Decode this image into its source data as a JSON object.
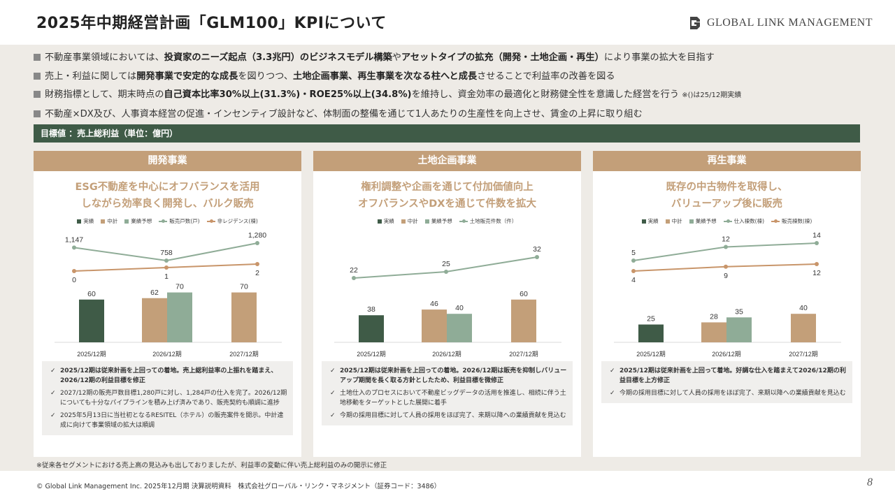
{
  "title": "2025年中期経営計画「GLM100」KPIについて",
  "logo_text": "GLOBAL LINK MANAGEMENT",
  "colors": {
    "actual": "#3f5b47",
    "plan": "#c39f79",
    "forecast": "#8fac97",
    "line_green": "#8fac97",
    "line_brown": "#c8956a",
    "target_bar": "#3f5b47",
    "panel_head": "#c39f79"
  },
  "bullets": [
    [
      {
        "t": "不動産事業領域においては、"
      },
      {
        "t": "投資家のニーズ起点（3.3兆円）のビジネスモデル構築",
        "b": true
      },
      {
        "t": "や"
      },
      {
        "t": "アセットタイプの拡充",
        "b": true
      },
      {
        "t": "（開発・土地企画・再生）",
        "b": true
      },
      {
        "t": "により事業の拡大を目指す"
      }
    ],
    [
      {
        "t": "売上・利益に関しては"
      },
      {
        "t": "開発事業で安定的な成長",
        "b": true
      },
      {
        "t": "を図りつつ、"
      },
      {
        "t": "土地企画事業、再生事業を次なる柱へと成長",
        "b": true
      },
      {
        "t": "させることで利益率の改善を図る"
      }
    ],
    [
      {
        "t": "財務指標として、期末時点の"
      },
      {
        "t": "自己資本比率30%以上(31.3%)・ROE25%以上(34.8%)",
        "b": true
      },
      {
        "t": "を維持し、資金効率の最適化と財務健全性を意識した経営を行う "
      },
      {
        "t": "※()は25/12期実績",
        "s": true
      }
    ],
    [
      {
        "t": "不動産×DX及び、人事資本経営の促進・インセンティブ設計など、体制面の整備を通じて1人あたりの生産性を向上させ、賃金の上昇に取り組む"
      }
    ]
  ],
  "target_label": "目標値 ：売上総利益（単位：億円）",
  "panels": [
    {
      "head": "開発事業",
      "sub": [
        "ESG不動産を中心にオフバランスを活用",
        "しながら効率良く開発し、バルク販売"
      ],
      "legend": [
        {
          "label": "実績",
          "kind": "bar",
          "color": "#3f5b47"
        },
        {
          "label": "中計",
          "kind": "bar",
          "color": "#c39f79"
        },
        {
          "label": "業績予想",
          "kind": "bar",
          "color": "#8fac97"
        },
        {
          "label": "販売戸数(戸)",
          "kind": "line",
          "color": "#8fac97"
        },
        {
          "label": "非レジデンス(棟)",
          "kind": "line",
          "color": "#c8956a"
        }
      ],
      "notes": [
        {
          "text": "2025/12期は従来計画を上回っての着地。売上総利益率の上振れを踏まえ、2026/12期の利益目標を修正",
          "bold": true
        },
        {
          "text": "2027/12期の販売戸数目標1,280戸に対し、1,284戸の仕入を完了。2026/12期についても十分なパイプラインを積み上げ済みであり、販売契約も順調に進捗",
          "bold": false
        },
        {
          "text": "2025年5月13日に当社初となるRESITEL（ホテル）の販売案件を開示。中計達成に向けて事業領域の拡大は順調",
          "bold": false
        }
      ]
    },
    {
      "head": "土地企画事業",
      "sub": [
        "権利調整や企画を通じて付加価値向上",
        "オフバランスやDXを通じて件数を拡大"
      ],
      "legend": [
        {
          "label": "実績",
          "kind": "bar",
          "color": "#3f5b47"
        },
        {
          "label": "中計",
          "kind": "bar",
          "color": "#c39f79"
        },
        {
          "label": "業績予想",
          "kind": "bar",
          "color": "#8fac97"
        },
        {
          "label": "土地販売件数（件）",
          "kind": "line",
          "color": "#8fac97"
        }
      ],
      "notes": [
        {
          "text": "2025/12期は従来計画を上回っての着地。2026/12期は販売を抑制しバリューアップ期間を長く取る方針としたため、利益目標を微修正",
          "bold": true
        },
        {
          "text": "土地仕入のプロセスにおいて不動産ビッグデータの活用を推進し、相続に伴う土地移動をターゲットとした展開に着手",
          "bold": false
        },
        {
          "text": "今期の採用目標に対して人員の採用をほぼ完了、来期以降への業績貢献を見込む",
          "bold": false
        }
      ]
    },
    {
      "head": "再生事業",
      "sub": [
        "既存の中古物件を取得し、",
        "バリューアップ後に販売"
      ],
      "legend": [
        {
          "label": "実績",
          "kind": "bar",
          "color": "#3f5b47"
        },
        {
          "label": "中計",
          "kind": "bar",
          "color": "#c39f79"
        },
        {
          "label": "業績予想",
          "kind": "bar",
          "color": "#8fac97"
        },
        {
          "label": "仕入棟数(棟)",
          "kind": "line",
          "color": "#8fac97"
        },
        {
          "label": "販売棟数(棟)",
          "kind": "line",
          "color": "#c8956a"
        }
      ],
      "notes": [
        {
          "text": "2025/12期は従来計画を上回って着地。好調な仕入を踏まえて2026/12期の利益目標を上方修正",
          "bold": true
        },
        {
          "text": "今期の採用目標に対して人員の採用をほぼ完了、来期以降への業績貢献を見込む",
          "bold": false
        }
      ]
    }
  ],
  "chart_data": [
    {
      "type": "bar",
      "categories": [
        "2025/12期",
        "2026/12期",
        "2027/12期"
      ],
      "ylim": [
        0,
        150
      ],
      "series": [
        {
          "name": "実績",
          "values": [
            60,
            null,
            null
          ]
        },
        {
          "name": "中計",
          "values": [
            null,
            62,
            70
          ]
        },
        {
          "name": "業績予想",
          "values": [
            null,
            70,
            null
          ]
        },
        {
          "name": "販売戸数(戸)",
          "values": [
            1147,
            758,
            1280
          ],
          "kind": "line"
        },
        {
          "name": "非レジデンス(棟)",
          "values": [
            0,
            1,
            2
          ],
          "kind": "line"
        }
      ]
    },
    {
      "type": "bar",
      "categories": [
        "2025/12期",
        "2026/12期",
        "2027/12期"
      ],
      "ylim": [
        0,
        150
      ],
      "series": [
        {
          "name": "実績",
          "values": [
            38,
            null,
            null
          ]
        },
        {
          "name": "中計",
          "values": [
            null,
            46,
            60
          ]
        },
        {
          "name": "業績予想",
          "values": [
            null,
            40,
            null
          ]
        },
        {
          "name": "土地販売件数（件）",
          "values": [
            22,
            25,
            32
          ],
          "kind": "line"
        }
      ]
    },
    {
      "type": "bar",
      "categories": [
        "2025/12期",
        "2026/12期",
        "2027/12期"
      ],
      "ylim": [
        0,
        150
      ],
      "series": [
        {
          "name": "実績",
          "values": [
            25,
            null,
            null
          ]
        },
        {
          "name": "中計",
          "values": [
            null,
            28,
            40
          ]
        },
        {
          "name": "業績予想",
          "values": [
            null,
            35,
            null
          ]
        },
        {
          "name": "仕入棟数(棟)",
          "values": [
            5,
            12,
            14
          ],
          "kind": "line"
        },
        {
          "name": "販売棟数(棟)",
          "values": [
            4,
            9,
            12
          ],
          "kind": "line"
        }
      ]
    }
  ],
  "footnote": "※従来各セグメントにおける売上高の見込みも出しておりましたが、利益率の変動に伴い売上総利益のみの開示に修正",
  "copyright": "© Global Link Management Inc. 2025年12月期 決算説明資料　株式会社グローバル・リンク・マネジメント（証券コード：3486）",
  "page_number": "8"
}
